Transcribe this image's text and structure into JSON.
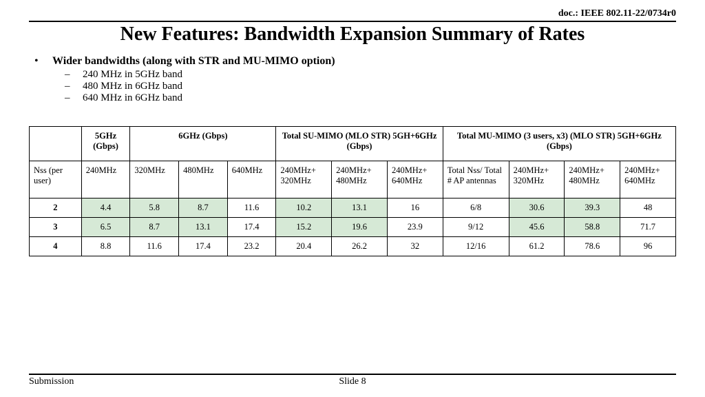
{
  "doc_id": "doc.: IEEE 802.11-22/0734r0",
  "title": "New Features: Bandwidth Expansion Summary of Rates",
  "bullet_main": "Wider bandwidths (along with STR and MU-MIMO option)",
  "sub_bullets": [
    "240 MHz in 5GHz band",
    "480 MHz in 6GHz band",
    "640 MHz in 6GHz band"
  ],
  "table": {
    "highlight_color": "#d6e9d6",
    "border_color": "#000000",
    "top_headers": {
      "blank": "",
      "col_5ghz": "5GHz (Gbps)",
      "col_6ghz": "6GHz (Gbps)",
      "col_su": "Total SU-MIMO (MLO STR) 5GH+6GHz (Gbps)",
      "col_mu": "Total MU-MIMO (3 users, x3) (MLO STR) 5GH+6GHz (Gbps)"
    },
    "sub_headers": {
      "nss": "Nss (per user)",
      "c240": "240MHz",
      "c320": "320MHz",
      "c480": "480MHz",
      "c640": "640MHz",
      "s240_320": "240MHz+ 320MHz",
      "s240_480": "240MHz+ 480MHz",
      "s240_640": "240MHz+ 640MHz",
      "totnss": "Total Nss/ Total # AP antennas",
      "m240_320": "240MHz+ 320MHz",
      "m240_480": "240MHz+ 480MHz",
      "m240_640": "240MHz+ 640MHz"
    },
    "rows": [
      {
        "nss": "2",
        "c240": "4.4",
        "c320": "5.8",
        "c480": "8.7",
        "c640": "11.6",
        "s1": "10.2",
        "s2": "13.1",
        "s3": "16",
        "tot": "6/8",
        "m1": "30.6",
        "m2": "39.3",
        "m3": "48",
        "hl": {
          "c240": true,
          "c320": true,
          "c480": true,
          "c640": false,
          "s1": true,
          "s2": true,
          "s3": false,
          "m1": true,
          "m2": true,
          "m3": false
        }
      },
      {
        "nss": "3",
        "c240": "6.5",
        "c320": "8.7",
        "c480": "13.1",
        "c640": "17.4",
        "s1": "15.2",
        "s2": "19.6",
        "s3": "23.9",
        "tot": "9/12",
        "m1": "45.6",
        "m2": "58.8",
        "m3": "71.7",
        "hl": {
          "c240": true,
          "c320": true,
          "c480": true,
          "c640": false,
          "s1": true,
          "s2": true,
          "s3": false,
          "m1": true,
          "m2": true,
          "m3": false
        }
      },
      {
        "nss": "4",
        "c240": "8.8",
        "c320": "11.6",
        "c480": "17.4",
        "c640": "23.2",
        "s1": "20.4",
        "s2": "26.2",
        "s3": "32",
        "tot": "12/16",
        "m1": "61.2",
        "m2": "78.6",
        "m3": "96",
        "hl": {
          "c240": false,
          "c320": false,
          "c480": false,
          "c640": false,
          "s1": false,
          "s2": false,
          "s3": false,
          "m1": false,
          "m2": false,
          "m3": false
        }
      }
    ],
    "col_widths_pct": [
      7.5,
      7,
      7,
      7,
      7,
      8,
      8,
      8,
      9.5,
      8,
      8,
      8
    ]
  },
  "footer": {
    "left": "Submission",
    "mid": "Slide 8",
    "right": ""
  }
}
